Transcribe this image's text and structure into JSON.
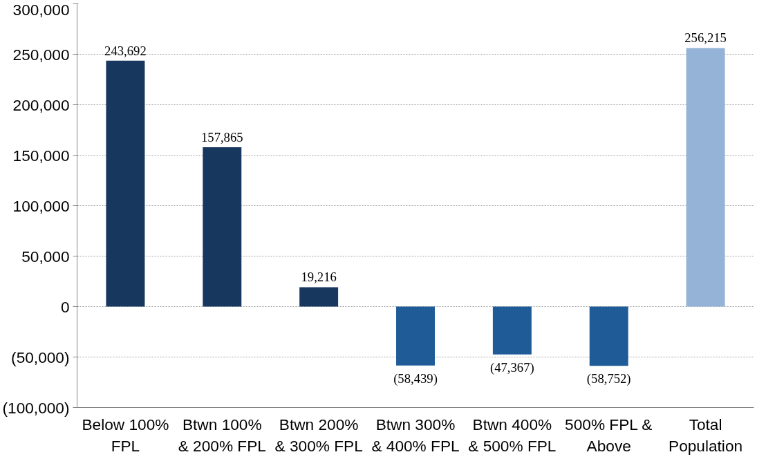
{
  "chart_data": {
    "type": "bar",
    "categories": [
      "Below 100% FPL",
      "Btwn 100% & 200% FPL",
      "Btwn 200% & 300% FPL",
      "Btwn 300% & 400% FPL",
      "Btwn 400% & 500% FPL",
      "500% FPL & Above",
      "Total Population"
    ],
    "values": [
      243692,
      157865,
      19216,
      -58439,
      -47367,
      -58752,
      256215
    ],
    "colors": [
      "#17375e",
      "#17375e",
      "#17375e",
      "#1f5b96",
      "#1f5b96",
      "#1f5b96",
      "#95b3d7"
    ],
    "value_labels": [
      "243,692",
      "157,865",
      "19,216",
      "(58,439)",
      "(47,367)",
      "(58,752)",
      "256,215"
    ],
    "ylim": [
      -100000,
      300000
    ],
    "yticks": [
      {
        "value": -100000,
        "label": "(100,000)"
      },
      {
        "value": -50000,
        "label": "(50,000)"
      },
      {
        "value": 0,
        "label": "0"
      },
      {
        "value": 50000,
        "label": "50,000"
      },
      {
        "value": 100000,
        "label": "100,000"
      },
      {
        "value": 150000,
        "label": "150,000"
      },
      {
        "value": 200000,
        "label": "200,000"
      },
      {
        "value": 250000,
        "label": "250,000"
      },
      {
        "value": 300000,
        "label": "300,000"
      }
    ],
    "grid": "y"
  }
}
